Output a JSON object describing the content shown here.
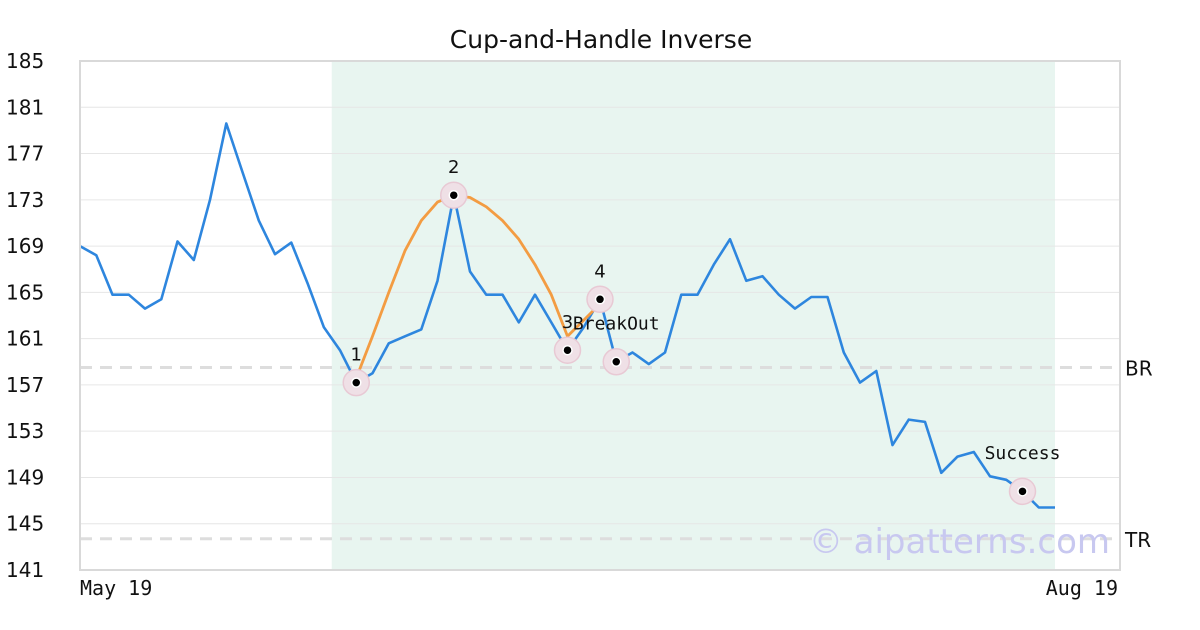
{
  "chart_data": {
    "type": "line",
    "title": "Cup-and-Handle Inverse",
    "xlabel": "",
    "ylabel": "",
    "ylim": [
      141,
      185
    ],
    "yticks": [
      141,
      145,
      149,
      153,
      157,
      161,
      165,
      169,
      173,
      177,
      181,
      185
    ],
    "xtick_labels": [
      "May 19",
      "Aug 19"
    ],
    "grid": true,
    "series": [
      {
        "color": "#2e86de",
        "values": [
          169.0,
          168.2,
          164.8,
          164.8,
          163.6,
          164.4,
          169.4,
          167.8,
          173.0,
          179.6,
          175.4,
          171.2,
          168.3,
          169.3,
          165.8,
          162.0,
          160.0,
          157.2,
          158.0,
          160.6,
          161.2,
          161.8,
          166.0,
          173.4,
          166.8,
          164.8,
          164.8,
          162.4,
          164.8,
          162.4,
          160.0,
          162.0,
          164.4,
          159.0,
          159.8,
          158.8,
          159.8,
          164.8,
          164.8,
          167.4,
          169.6,
          166.0,
          166.4,
          164.8,
          163.6,
          164.6,
          164.6,
          159.8,
          157.2,
          158.2,
          151.8,
          154.0,
          153.8,
          149.4,
          150.8,
          151.2,
          149.1,
          148.8,
          147.8,
          146.4,
          146.4
        ]
      },
      {
        "color": "#f39c42",
        "x_indices": [
          17,
          18,
          19,
          20,
          21,
          22,
          23,
          24,
          25,
          26,
          27,
          28,
          29,
          30,
          31,
          32
        ],
        "values": [
          157.6,
          161.2,
          165.0,
          168.6,
          171.2,
          172.8,
          173.4,
          173.2,
          172.4,
          171.2,
          169.6,
          167.4,
          164.8,
          161.2,
          162.6,
          164.0
        ]
      }
    ],
    "highlight_band": {
      "x_start_index": 15,
      "x_end_index": 60,
      "color": "#e8f5f0"
    },
    "reference_lines": [
      {
        "label": "BR",
        "value": 158.5
      },
      {
        "label": "TR",
        "value": 143.7
      }
    ],
    "points": [
      {
        "label": "1",
        "x_index": 17,
        "value": 157.2
      },
      {
        "label": "2",
        "x_index": 23,
        "value": 173.4
      },
      {
        "label": "3",
        "x_index": 30,
        "value": 160.0
      },
      {
        "label": "4",
        "x_index": 32,
        "value": 164.4
      },
      {
        "label": "",
        "x_index": 33,
        "value": 159.0
      },
      {
        "label": "",
        "x_index": 58,
        "value": 147.8
      }
    ],
    "annotations": [
      {
        "text": "BreakOut",
        "x_index": 33,
        "value": 161.8
      },
      {
        "text": "Success",
        "x_index": 58,
        "value": 150.6
      }
    ]
  },
  "watermark": "© aipatterns.com"
}
